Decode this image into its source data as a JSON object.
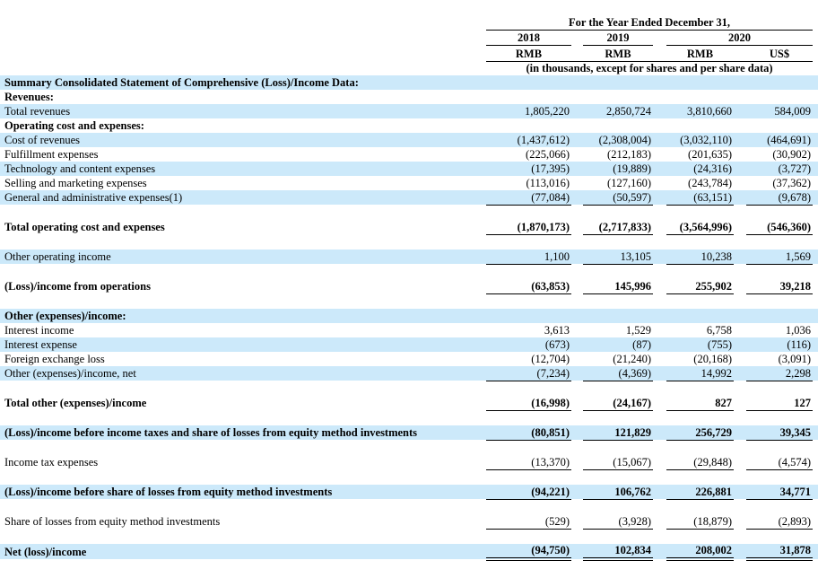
{
  "page": {
    "background": "#ffffff"
  },
  "colors": {
    "row_highlight": "#cce9fa",
    "rule": "#000000"
  },
  "header": {
    "title": "For the Year Ended December 31,",
    "years": [
      "2018",
      "2019",
      "2020"
    ],
    "currencies": [
      "RMB",
      "RMB",
      "RMB",
      "US$"
    ],
    "note": "(in thousands, except for shares and per share data)"
  },
  "table": {
    "rows": [
      {
        "label": "Summary Consolidated Statement of Comprehensive (Loss)/Income Data:",
        "bold": true,
        "blue": true
      },
      {
        "label": "Revenues:",
        "bold": true,
        "blue": false
      },
      {
        "label": "Total revenues",
        "bold": false,
        "blue": true,
        "values": [
          "1,805,220",
          "2,850,724",
          "3,810,660",
          "584,009"
        ]
      },
      {
        "label": "Operating cost and expenses:",
        "bold": true,
        "blue": false
      },
      {
        "label": "Cost of revenues",
        "bold": false,
        "blue": true,
        "values": [
          "(1,437,612)",
          "(2,308,004)",
          "(3,032,110)",
          "(464,691)"
        ]
      },
      {
        "label": "Fulfillment expenses",
        "bold": false,
        "blue": false,
        "values": [
          "(225,066)",
          "(212,183)",
          "(201,635)",
          "(30,902)"
        ]
      },
      {
        "label": "Technology and content expenses",
        "bold": false,
        "blue": true,
        "values": [
          "(17,395)",
          "(19,889)",
          "(24,316)",
          "(3,727)"
        ]
      },
      {
        "label": "Selling and marketing expenses",
        "bold": false,
        "blue": false,
        "values": [
          "(113,016)",
          "(127,160)",
          "(243,784)",
          "(37,362)"
        ]
      },
      {
        "label": "General and administrative expenses(1)",
        "bold": false,
        "blue": true,
        "values": [
          "(77,084)",
          "(50,597)",
          "(63,151)",
          "(9,678)"
        ],
        "underline": "single"
      },
      {
        "label": "Total operating cost and expenses",
        "bold": true,
        "blue": false,
        "values": [
          "(1,870,173)",
          "(2,717,833)",
          "(3,564,996)",
          "(546,360)"
        ],
        "underline": "single"
      },
      {
        "label": "Other operating income",
        "bold": false,
        "blue": true,
        "values": [
          "1,100",
          "13,105",
          "10,238",
          "1,569"
        ],
        "underline": "single"
      },
      {
        "label": "(Loss)/income from operations",
        "bold": true,
        "blue": false,
        "values": [
          "(63,853)",
          "145,996",
          "255,902",
          "39,218"
        ],
        "underline": "single"
      },
      {
        "label": "Other (expenses)/income:",
        "bold": true,
        "blue": true
      },
      {
        "label": "Interest income",
        "bold": false,
        "blue": false,
        "values": [
          "3,613",
          "1,529",
          "6,758",
          "1,036"
        ]
      },
      {
        "label": "Interest expense",
        "bold": false,
        "blue": true,
        "values": [
          "(673)",
          "(87)",
          "(755)",
          "(116)"
        ]
      },
      {
        "label": "Foreign exchange loss",
        "bold": false,
        "blue": false,
        "values": [
          "(12,704)",
          "(21,240)",
          "(20,168)",
          "(3,091)"
        ]
      },
      {
        "label": "Other (expenses)/income, net",
        "bold": false,
        "blue": true,
        "values": [
          "(7,234)",
          "(4,369)",
          "14,992",
          "2,298"
        ],
        "underline": "single"
      },
      {
        "label": "Total other (expenses)/income",
        "bold": true,
        "blue": false,
        "values": [
          "(16,998)",
          "(24,167)",
          "827",
          "127"
        ],
        "underline": "single"
      },
      {
        "label": "(Loss)/income before income taxes and share of losses from equity method investments",
        "bold": true,
        "blue": true,
        "values": [
          "(80,851)",
          "121,829",
          "256,729",
          "39,345"
        ],
        "underline": "single"
      },
      {
        "label": "Income tax expenses",
        "bold": false,
        "blue": false,
        "values": [
          "(13,370)",
          "(15,067)",
          "(29,848)",
          "(4,574)"
        ],
        "underline": "single"
      },
      {
        "label": "(Loss)/income before share of losses from equity method investments",
        "bold": true,
        "blue": true,
        "values": [
          "(94,221)",
          "106,762",
          "226,881",
          "34,771"
        ],
        "underline": "single"
      },
      {
        "label": "Share of losses from equity method investments",
        "bold": false,
        "blue": false,
        "values": [
          "(529)",
          "(3,928)",
          "(18,879)",
          "(2,893)"
        ],
        "underline": "single"
      },
      {
        "label": "Net (loss)/income",
        "bold": true,
        "blue": true,
        "values": [
          "(94,750)",
          "102,834",
          "208,002",
          "31,878"
        ],
        "underline": "double"
      }
    ]
  }
}
